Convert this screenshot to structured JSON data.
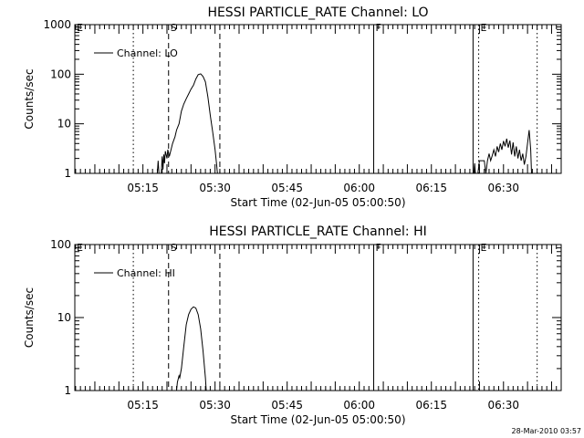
{
  "footer_stamp": "28-Mar-2010 03:57",
  "chart_data": [
    {
      "type": "line",
      "title": "HESSI PARTICLE_RATE Channel: LO",
      "xlabel": "Start Time (02-Jun-05 05:00:50)",
      "ylabel": "Counts/sec",
      "yscale": "log",
      "ylim": [
        1,
        1000
      ],
      "xlim": [
        "05:00:50",
        "06:42:00"
      ],
      "y_ticks": [
        "1",
        "10",
        "100",
        "1000"
      ],
      "x_ticks": [
        "05:15",
        "05:30",
        "05:45",
        "06:00",
        "06:15",
        "06:30"
      ],
      "legend": {
        "label": "Channel: LO",
        "placement": "top-left"
      },
      "markers": [
        {
          "label": "E",
          "time": "05:00:50",
          "style": "solid"
        },
        {
          "label": "",
          "time": "05:13:00",
          "style": "dotted"
        },
        {
          "label": "S",
          "time": "05:20:20",
          "style": "dashed"
        },
        {
          "label": "",
          "time": "05:31:00",
          "style": "dashed"
        },
        {
          "label": "F",
          "time": "06:03:00",
          "style": "solid"
        },
        {
          "label": "",
          "time": "06:23:40",
          "style": "solid"
        },
        {
          "label": "E",
          "time": "06:24:50",
          "style": "dotted"
        },
        {
          "label": "",
          "time": "06:37:00",
          "style": "dotted"
        }
      ],
      "series": [
        {
          "name": "Channel: LO",
          "segments": [
            [
              [
                "05:18:00",
                1
              ],
              [
                "05:18:10",
                1.8
              ],
              [
                "05:18:20",
                1
              ],
              [
                "05:18:50",
                1
              ],
              [
                "05:19:00",
                2.2
              ],
              [
                "05:19:10",
                1.2
              ],
              [
                "05:19:20",
                2.4
              ],
              [
                "05:19:30",
                1.6
              ],
              [
                "05:19:40",
                2.8
              ],
              [
                "05:20:00",
                2.0
              ],
              [
                "05:20:10",
                3.0
              ],
              [
                "05:20:30",
                2.2
              ],
              [
                "05:20:50",
                3.0
              ],
              [
                "05:21:10",
                4.0
              ],
              [
                "05:21:40",
                5.5
              ],
              [
                "05:22:00",
                7.5
              ],
              [
                "05:22:30",
                10
              ],
              [
                "05:23:00",
                18
              ],
              [
                "05:23:30",
                25
              ],
              [
                "05:24:00",
                32
              ],
              [
                "05:24:30",
                40
              ],
              [
                "05:25:00",
                50
              ],
              [
                "05:25:30",
                60
              ],
              [
                "05:26:00",
                80
              ],
              [
                "05:26:30",
                98
              ],
              [
                "05:27:00",
                102
              ],
              [
                "05:27:30",
                90
              ],
              [
                "05:28:00",
                70
              ],
              [
                "05:28:30",
                35
              ],
              [
                "05:29:00",
                15
              ],
              [
                "05:29:30",
                7
              ],
              [
                "05:30:00",
                3
              ],
              [
                "05:30:20",
                1.5
              ],
              [
                "05:30:30",
                1
              ]
            ],
            [
              [
                "06:23:50",
                1
              ],
              [
                "06:24:00",
                1.6
              ],
              [
                "06:24:10",
                1
              ],
              [
                "06:24:40",
                1
              ],
              [
                "06:25:00",
                1.8
              ],
              [
                "06:25:30",
                1.8
              ],
              [
                "06:26:00",
                1.8
              ],
              [
                "06:26:20",
                1
              ],
              [
                "06:26:40",
                1.8
              ],
              [
                "06:27:00",
                2.5
              ],
              [
                "06:27:20",
                1.8
              ],
              [
                "06:27:40",
                2.3
              ],
              [
                "06:28:00",
                3
              ],
              [
                "06:28:20",
                2.2
              ],
              [
                "06:28:40",
                3.5
              ],
              [
                "06:29:00",
                2.7
              ],
              [
                "06:29:20",
                4
              ],
              [
                "06:29:40",
                3
              ],
              [
                "06:30:00",
                4.5
              ],
              [
                "06:30:20",
                3.5
              ],
              [
                "06:30:40",
                5
              ],
              [
                "06:31:00",
                3.3
              ],
              [
                "06:31:20",
                4.6
              ],
              [
                "06:31:40",
                2.4
              ],
              [
                "06:32:00",
                4.2
              ],
              [
                "06:32:20",
                2.2
              ],
              [
                "06:32:40",
                3.5
              ],
              [
                "06:33:00",
                2
              ],
              [
                "06:33:20",
                3
              ],
              [
                "06:33:40",
                1.8
              ],
              [
                "06:34:00",
                2.5
              ],
              [
                "06:34:20",
                1.5
              ],
              [
                "06:34:40",
                2.2
              ],
              [
                "06:35:00",
                4
              ],
              [
                "06:35:20",
                7.5
              ],
              [
                "06:35:40",
                3
              ],
              [
                "06:35:50",
                1
              ]
            ]
          ]
        }
      ]
    },
    {
      "type": "line",
      "title": "HESSI PARTICLE_RATE Channel: HI",
      "xlabel": "Start Time (02-Jun-05 05:00:50)",
      "ylabel": "Counts/sec",
      "yscale": "log",
      "ylim": [
        1,
        100
      ],
      "xlim": [
        "05:00:50",
        "06:42:00"
      ],
      "y_ticks": [
        "1",
        "10",
        "100"
      ],
      "x_ticks": [
        "05:15",
        "05:30",
        "05:45",
        "06:00",
        "06:15",
        "06:30"
      ],
      "legend": {
        "label": "Channel: HI",
        "placement": "top-left"
      },
      "markers": [
        {
          "label": "E",
          "time": "05:00:50",
          "style": "solid"
        },
        {
          "label": "",
          "time": "05:13:00",
          "style": "dotted"
        },
        {
          "label": "S",
          "time": "05:20:20",
          "style": "dashed"
        },
        {
          "label": "",
          "time": "05:31:00",
          "style": "dashed"
        },
        {
          "label": "F",
          "time": "06:03:00",
          "style": "solid"
        },
        {
          "label": "",
          "time": "06:23:40",
          "style": "solid"
        },
        {
          "label": "E",
          "time": "06:24:50",
          "style": "dotted"
        },
        {
          "label": "",
          "time": "06:37:00",
          "style": "dotted"
        }
      ],
      "series": [
        {
          "name": "Channel: HI",
          "segments": [
            [
              [
                "05:22:00",
                1
              ],
              [
                "05:22:10",
                1.3
              ],
              [
                "05:22:30",
                1.6
              ],
              [
                "05:22:40",
                1.5
              ],
              [
                "05:23:00",
                2
              ],
              [
                "05:23:30",
                4
              ],
              [
                "05:24:00",
                8
              ],
              [
                "05:24:30",
                11
              ],
              [
                "05:25:00",
                13
              ],
              [
                "05:25:30",
                14
              ],
              [
                "05:26:00",
                13.5
              ],
              [
                "05:26:30",
                11
              ],
              [
                "05:27:00",
                7
              ],
              [
                "05:27:30",
                3.5
              ],
              [
                "05:28:00",
                1.5
              ],
              [
                "05:28:10",
                1
              ]
            ]
          ]
        }
      ]
    }
  ]
}
